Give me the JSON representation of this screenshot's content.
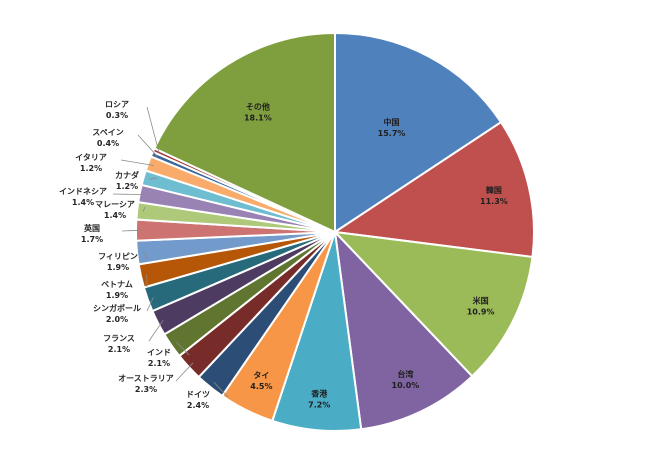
{
  "chart_data": {
    "type": "pie",
    "start_angle_deg": 0,
    "direction": "clockwise",
    "slices": [
      {
        "label": "中国",
        "value": 15.7,
        "display": "15.7%",
        "color": "#4F81BD"
      },
      {
        "label": "韓国",
        "value": 11.3,
        "display": "11.3%",
        "color": "#C0504D"
      },
      {
        "label": "米国",
        "value": 10.9,
        "display": "10.9%",
        "color": "#9BBB59"
      },
      {
        "label": "台湾",
        "value": 10.0,
        "display": "10.0%",
        "color": "#8064A2"
      },
      {
        "label": "香港",
        "value": 7.2,
        "display": "7.2%",
        "color": "#4BACC6"
      },
      {
        "label": "タイ",
        "value": 4.5,
        "display": "4.5%",
        "color": "#F79646"
      },
      {
        "label": "ドイツ",
        "value": 2.4,
        "display": "2.4%",
        "color": "#2C4D75"
      },
      {
        "label": "オーストラリア",
        "value": 2.3,
        "display": "2.3%",
        "color": "#772C2A"
      },
      {
        "label": "インド",
        "value": 2.1,
        "display": "2.1%",
        "color": "#5F7530"
      },
      {
        "label": "フランス",
        "value": 2.1,
        "display": "2.1%",
        "color": "#4D3B62"
      },
      {
        "label": "シンガポール",
        "value": 2.0,
        "display": "2.0%",
        "color": "#276A7C"
      },
      {
        "label": "ベトナム",
        "value": 1.9,
        "display": "1.9%",
        "color": "#B65708"
      },
      {
        "label": "フィリピン",
        "value": 1.9,
        "display": "1.9%",
        "color": "#729ACA"
      },
      {
        "label": "英国",
        "value": 1.7,
        "display": "1.7%",
        "color": "#CD7371"
      },
      {
        "label": "マレーシア",
        "value": 1.4,
        "display": "1.4%",
        "color": "#AFC97A"
      },
      {
        "label": "インドネシア",
        "value": 1.4,
        "display": "1.4%",
        "color": "#9983B5"
      },
      {
        "label": "カナダ",
        "value": 1.2,
        "display": "1.2%",
        "color": "#6FBDD1"
      },
      {
        "label": "イタリア",
        "value": 1.2,
        "display": "1.2%",
        "color": "#F9AB6B"
      },
      {
        "label": "スペイン",
        "value": 0.4,
        "display": "0.4%",
        "color": "#3A6799"
      },
      {
        "label": "ロシア",
        "value": 0.3,
        "display": "0.3%",
        "color": "#9E3A38"
      },
      {
        "label": "その他",
        "value": 18.1,
        "display": "18.1%",
        "color": "#7F9F3F"
      }
    ]
  }
}
